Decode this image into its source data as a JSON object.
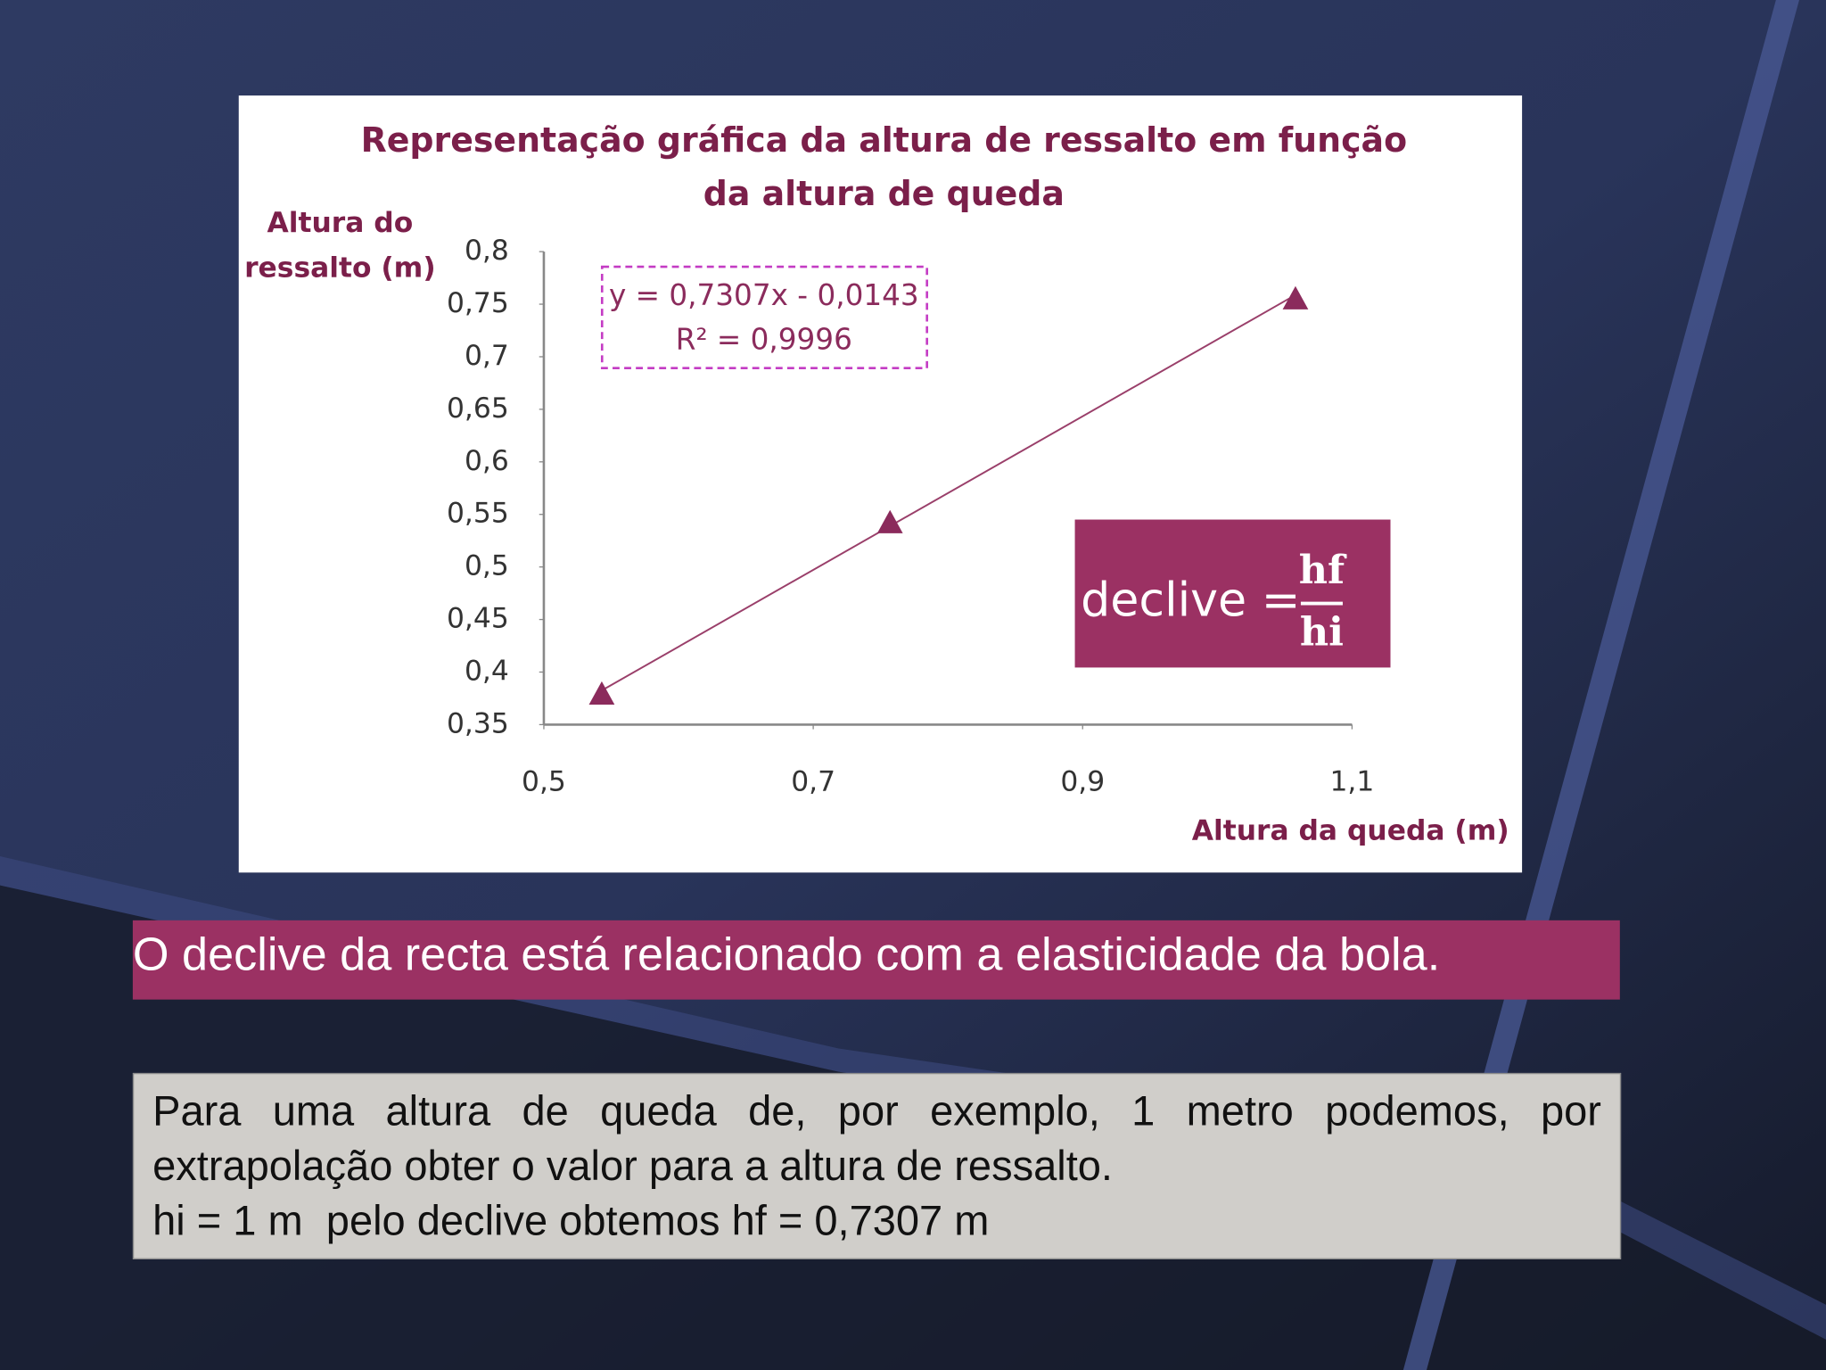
{
  "slide": {
    "banner": "O declive da recta está relacionado com a elasticidade da bola.",
    "paragraph": "Para uma altura de queda de, por exemplo, 1 metro podemos, por extrapolação obter o valor para a altura de ressalto.",
    "example": "hi = 1 m  pelo declive obtemos hf = 0,7307 m"
  },
  "chart_data": {
    "type": "scatter",
    "title": [
      "Representação gráfica da altura de ressalto em função",
      "da altura de queda"
    ],
    "y_label": [
      "Altura do",
      "ressalto (m)"
    ],
    "x_label": "Altura da queda (m)",
    "x": [
      0.543,
      0.757,
      1.058
    ],
    "y": [
      0.379,
      0.542,
      0.755
    ],
    "color": "#8b2b5c",
    "xlim": [
      0.5,
      1.1
    ],
    "ylim": [
      0.35,
      0.8
    ],
    "xticks": [
      {
        "value": 0.5,
        "label": "0,5"
      },
      {
        "value": 0.7,
        "label": "0,7"
      },
      {
        "value": 0.9,
        "label": "0,9"
      },
      {
        "value": 1.1,
        "label": "1,1"
      }
    ],
    "yticks": [
      {
        "value": 0.35,
        "label": "0,35"
      },
      {
        "value": 0.4,
        "label": "0,4"
      },
      {
        "value": 0.45,
        "label": "0,45"
      },
      {
        "value": 0.5,
        "label": "0,5"
      },
      {
        "value": 0.55,
        "label": "0,55"
      },
      {
        "value": 0.6,
        "label": "0,6"
      },
      {
        "value": 0.65,
        "label": "0,65"
      },
      {
        "value": 0.7,
        "label": "0,7"
      },
      {
        "value": 0.75,
        "label": "0,75"
      },
      {
        "value": 0.8,
        "label": "0,8"
      }
    ],
    "trendline": {
      "slope": 0.7307,
      "intercept": -0.0143,
      "equation": "y = 0,7307x - 0,0143",
      "r2_label": "R² = 0,9996"
    },
    "annotation": {
      "text": "declive =",
      "numerator": "hf",
      "denominator": "hi"
    }
  }
}
